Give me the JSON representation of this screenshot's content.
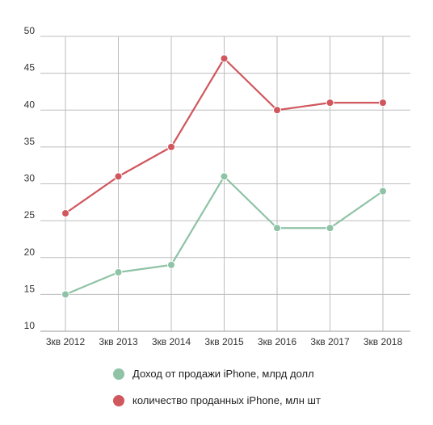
{
  "chart_data": {
    "type": "line",
    "categories": [
      "3кв 2012",
      "3кв 2013",
      "3кв 2014",
      "3кв 2015",
      "3кв 2016",
      "3кв 2017",
      "3кв 2018"
    ],
    "series": [
      {
        "name": "Доход от продажи iPhone, млрд долл",
        "color": "#8fc3a6",
        "values": [
          15,
          18,
          19,
          31,
          24,
          24,
          29
        ]
      },
      {
        "name": "количество проданных iPhone, млн шт",
        "color": "#d0575d",
        "values": [
          26,
          31,
          35,
          47,
          40,
          41,
          41
        ]
      }
    ],
    "yticks": [
      10,
      15,
      20,
      25,
      30,
      35,
      40,
      45,
      50
    ],
    "ylim": [
      10,
      50
    ],
    "grid": true,
    "legend_position": "bottom"
  }
}
